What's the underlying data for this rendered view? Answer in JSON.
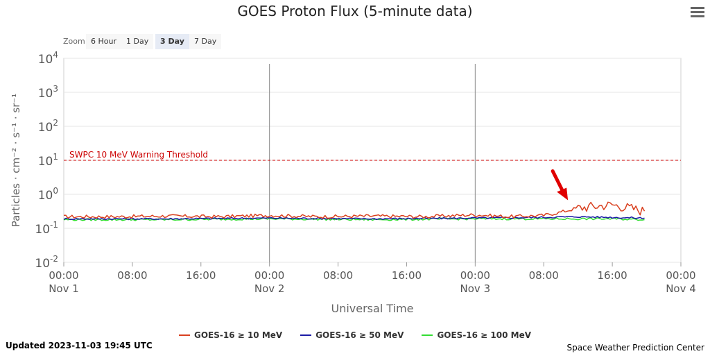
{
  "header": {
    "title": "GOES Proton Flux (5-minute data)"
  },
  "zoom": {
    "label": "Zoom",
    "buttons": [
      "6 Hour",
      "1 Day",
      "3 Day",
      "7 Day"
    ],
    "active": "3 Day"
  },
  "footer": {
    "updated": "Updated 2023-11-03 19:45 UTC",
    "credits": "Space Weather Prediction Center"
  },
  "colors": {
    "p10": "#d9401f",
    "p50": "#1a1aa6",
    "p100": "#33dd33",
    "threshold": "#cc0000",
    "arrow": "#e00000"
  },
  "chart_data": {
    "type": "line",
    "title": "GOES Proton Flux (5-minute data)",
    "xlabel": "Universal Time",
    "ylabel": "Particles · cm⁻² · s⁻¹ · sr⁻¹",
    "y_scale": "log",
    "ylim": [
      0.01,
      10000
    ],
    "xlim": [
      "2023-11-01 00:00",
      "2023-11-04 00:00"
    ],
    "y_ticks": [
      {
        "base": "10",
        "exp": "-2"
      },
      {
        "base": "10",
        "exp": "-1"
      },
      {
        "base": "10",
        "exp": "0"
      },
      {
        "base": "10",
        "exp": "1"
      },
      {
        "base": "10",
        "exp": "2"
      },
      {
        "base": "10",
        "exp": "3"
      },
      {
        "base": "10",
        "exp": "4"
      }
    ],
    "x_ticks": [
      {
        "time": "00:00",
        "date": "Nov 1"
      },
      {
        "time": "08:00",
        "date": ""
      },
      {
        "time": "16:00",
        "date": ""
      },
      {
        "time": "00:00",
        "date": "Nov 2"
      },
      {
        "time": "08:00",
        "date": ""
      },
      {
        "time": "16:00",
        "date": ""
      },
      {
        "time": "00:00",
        "date": "Nov 3"
      },
      {
        "time": "08:00",
        "date": ""
      },
      {
        "time": "16:00",
        "date": ""
      },
      {
        "time": "00:00",
        "date": "Nov 4"
      }
    ],
    "threshold": {
      "label": "SWPC 10 MeV Warning Threshold",
      "value": 10
    },
    "series": [
      {
        "name": "GOES-16 ≥ 10 MeV",
        "color": "#d9401f",
        "x": [
          "2023-11-01 00:00",
          "2023-11-01 06:00",
          "2023-11-01 12:00",
          "2023-11-01 18:00",
          "2023-11-02 00:00",
          "2023-11-02 06:00",
          "2023-11-02 12:00",
          "2023-11-02 18:00",
          "2023-11-03 00:00",
          "2023-11-03 04:00",
          "2023-11-03 08:00",
          "2023-11-03 10:00",
          "2023-11-03 12:00",
          "2023-11-03 14:00",
          "2023-11-03 16:00",
          "2023-11-03 18:00",
          "2023-11-03 19:45"
        ],
        "y": [
          0.22,
          0.22,
          0.23,
          0.22,
          0.24,
          0.22,
          0.23,
          0.22,
          0.25,
          0.22,
          0.24,
          0.3,
          0.4,
          0.45,
          0.5,
          0.4,
          0.32
        ]
      },
      {
        "name": "GOES-16 ≥ 50 MeV",
        "color": "#1a1aa6",
        "x": [
          "2023-11-01 00:00",
          "2023-11-01 12:00",
          "2023-11-02 00:00",
          "2023-11-02 12:00",
          "2023-11-03 00:00",
          "2023-11-03 08:00",
          "2023-11-03 12:00",
          "2023-11-03 16:00",
          "2023-11-03 19:45"
        ],
        "y": [
          0.19,
          0.19,
          0.2,
          0.19,
          0.2,
          0.21,
          0.22,
          0.21,
          0.2
        ]
      },
      {
        "name": "GOES-16 ≥ 100 MeV",
        "color": "#33dd33",
        "x": [
          "2023-11-01 00:00",
          "2023-11-01 12:00",
          "2023-11-02 00:00",
          "2023-11-02 12:00",
          "2023-11-03 00:00",
          "2023-11-03 08:00",
          "2023-11-03 12:00",
          "2023-11-03 16:00",
          "2023-11-03 19:45"
        ],
        "y": [
          0.18,
          0.18,
          0.19,
          0.18,
          0.19,
          0.19,
          0.19,
          0.19,
          0.18
        ]
      }
    ],
    "annotation": {
      "type": "arrow",
      "points_to": {
        "x": "2023-11-03 10:30",
        "y": 0.42
      }
    }
  }
}
